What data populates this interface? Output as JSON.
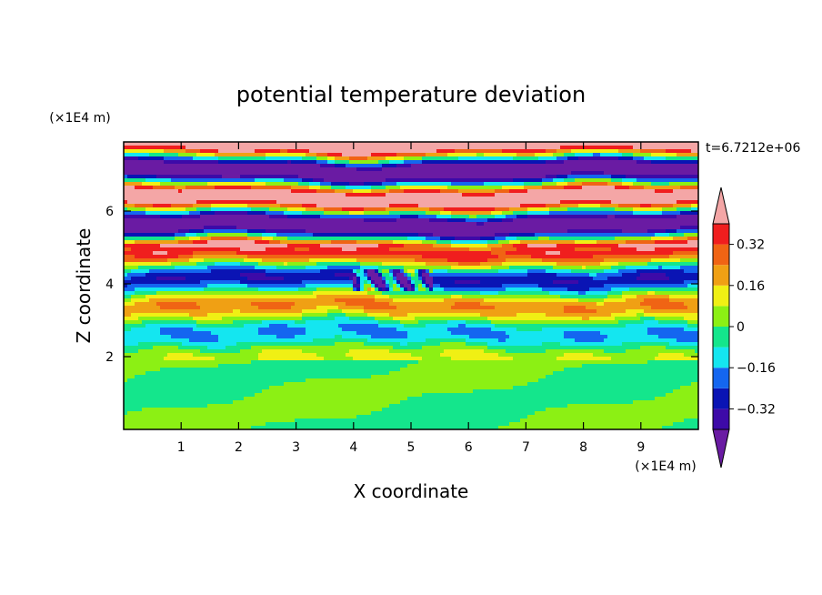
{
  "chart_data": {
    "type": "heatmap",
    "title": "potential temperature deviation",
    "xlabel": "X coordinate",
    "ylabel": "Z coordinate",
    "x_unit": "(×1E4 m)",
    "y_unit": "(×1E4 m)",
    "time_label": "t=6.7212e+06",
    "xlim": [
      0,
      10
    ],
    "ylim": [
      0,
      7.9
    ],
    "x_ticks": [
      "1",
      "2",
      "3",
      "4",
      "5",
      "6",
      "7",
      "8",
      "9"
    ],
    "y_ticks": [
      "2",
      "4",
      "6"
    ],
    "colorbar": {
      "tick_labels": [
        "0.32",
        "0.16",
        "0",
        "-0.16",
        "-0.32"
      ],
      "levels": [
        -0.4,
        -0.32,
        -0.24,
        -0.16,
        -0.08,
        0,
        0.08,
        0.16,
        0.24,
        0.32,
        0.4
      ],
      "colors": [
        "#6a1ba3",
        "#3d0aa8",
        "#0a14b4",
        "#1466f0",
        "#14e6f0",
        "#14e68c",
        "#8cf014",
        "#f0f014",
        "#f0a014",
        "#f06414",
        "#f01e1e",
        "#f4a6a6"
      ],
      "extend": "both"
    }
  }
}
